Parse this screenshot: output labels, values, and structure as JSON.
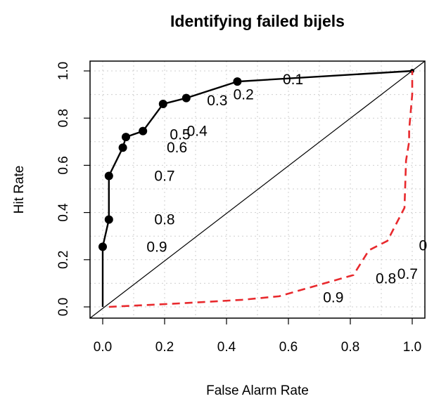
{
  "chart_data": {
    "type": "line",
    "title": "Identifying failed bijels",
    "xlabel": "False Alarm Rate",
    "ylabel": "Hit Rate",
    "xlim": [
      0,
      1
    ],
    "ylim": [
      0,
      1
    ],
    "x_ticks": [
      "0.0",
      "0.2",
      "0.4",
      "0.6",
      "0.8",
      "1.0"
    ],
    "y_ticks": [
      "0.0",
      "0.2",
      "0.4",
      "0.6",
      "0.8",
      "1.0"
    ],
    "grid": true,
    "reference_line": {
      "from": [
        0,
        0
      ],
      "to": [
        1,
        1
      ],
      "color": "#000000"
    },
    "series": [
      {
        "color": "#000000",
        "style": "solid",
        "markers": true,
        "x": [
          0.0,
          0.0,
          0.02,
          0.02,
          0.065,
          0.075,
          0.13,
          0.195,
          0.27,
          0.435,
          1.0
        ],
        "y": [
          0.0,
          0.255,
          0.37,
          0.555,
          0.675,
          0.72,
          0.745,
          0.86,
          0.885,
          0.955,
          1.0
        ]
      },
      {
        "color": "#e8292d",
        "style": "dashed",
        "markers": false,
        "x": [
          0.02,
          0.25,
          0.45,
          0.57,
          0.65,
          0.81,
          0.86,
          0.92,
          0.975,
          0.98,
          0.99,
          0.99,
          1.0,
          1.0
        ],
        "y": [
          0.0,
          0.015,
          0.03,
          0.045,
          0.075,
          0.135,
          0.24,
          0.28,
          0.42,
          0.62,
          0.7,
          0.75,
          0.9,
          1.0
        ]
      }
    ],
    "annotations": [
      {
        "text": "0.1",
        "x": 0.615,
        "y": 0.965
      },
      {
        "text": "0.2",
        "x": 0.455,
        "y": 0.9
      },
      {
        "text": "0.3",
        "x": 0.37,
        "y": 0.875
      },
      {
        "text": "0.4",
        "x": 0.305,
        "y": 0.745
      },
      {
        "text": "0.5",
        "x": 0.25,
        "y": 0.73
      },
      {
        "text": "0.6",
        "x": 0.24,
        "y": 0.675
      },
      {
        "text": "0.7",
        "x": 0.2,
        "y": 0.555
      },
      {
        "text": "0.8",
        "x": 0.2,
        "y": 0.37
      },
      {
        "text": "0.9",
        "x": 0.175,
        "y": 0.255
      },
      {
        "text": "0.9",
        "x": 0.745,
        "y": 0.04
      },
      {
        "text": "0.8",
        "x": 0.915,
        "y": 0.12
      },
      {
        "text": "0.7",
        "x": 0.985,
        "y": 0.14
      },
      {
        "text": "0",
        "x": 1.035,
        "y": 0.26
      }
    ]
  }
}
